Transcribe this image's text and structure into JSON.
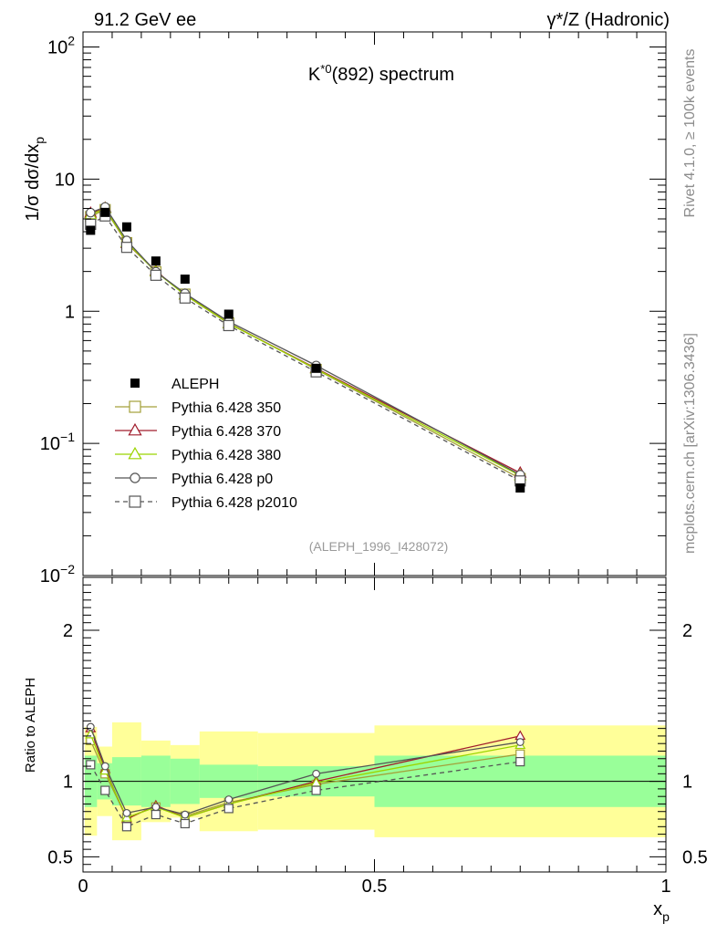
{
  "header": {
    "left": "91.2 GeV ee",
    "right": "γ*/Z (Hadronic)",
    "right_symbol": "γ",
    "right_rest": "*/Z (Hadronic)"
  },
  "side_text": {
    "rivet": "Rivet 4.1.0, ≥ 100k events",
    "mcplots": "mcplots.cern.ch [arXiv:1306.3436]"
  },
  "chart_data": {
    "type": "scatter",
    "title": "K*0(892) spectrum",
    "title_base": "K",
    "title_sup": "*0",
    "title_rest": "(892) spectrum",
    "analysis_id": "(ALEPH_1996_I428072)",
    "xlabel": "x",
    "xlabel_sub": "p",
    "ylabel": "1/σ  dσ/dx",
    "ylabel_sub": "p",
    "ratio_ylabel": "Ratio to ALEPH",
    "xlim": [
      0,
      1
    ],
    "ylim_log": [
      0.01,
      130
    ],
    "ratio_ylim": [
      0.4,
      2.35
    ],
    "x_ticks": [
      {
        "v": 0,
        "label": "0"
      },
      {
        "v": 0.5,
        "label": "0.5"
      },
      {
        "v": 1,
        "label": "1"
      }
    ],
    "y_ticks": [
      {
        "v": 100,
        "base": "10",
        "exp": "2"
      },
      {
        "v": 10,
        "label": "10"
      },
      {
        "v": 1,
        "label": "1"
      },
      {
        "v": 0.1,
        "base": "10",
        "exp": "−1"
      },
      {
        "v": 0.01,
        "base": "10",
        "exp": "−2"
      }
    ],
    "ratio_ticks": [
      {
        "v": 0.5,
        "label": "0.5"
      },
      {
        "v": 1,
        "label": "1"
      },
      {
        "v": 2,
        "label": "2"
      }
    ],
    "data_points": {
      "name": "ALEPH",
      "x": [
        0.013,
        0.038,
        0.075,
        0.125,
        0.175,
        0.25,
        0.4,
        0.75
      ],
      "y": [
        4.1,
        5.6,
        4.35,
        2.4,
        1.75,
        0.95,
        0.37,
        0.046
      ]
    },
    "ratio_bands": [
      {
        "x0": 0.003,
        "x1": 0.024,
        "inner": [
          0.83,
          1.17
        ],
        "outer": [
          0.64,
          1.36
        ]
      },
      {
        "x0": 0.024,
        "x1": 0.05,
        "inner": [
          0.88,
          1.12
        ],
        "outer": [
          0.77,
          1.23
        ]
      },
      {
        "x0": 0.05,
        "x1": 0.1,
        "inner": [
          0.84,
          1.16
        ],
        "outer": [
          0.61,
          1.39
        ]
      },
      {
        "x0": 0.1,
        "x1": 0.15,
        "inner": [
          0.83,
          1.17
        ],
        "outer": [
          0.73,
          1.27
        ]
      },
      {
        "x0": 0.15,
        "x1": 0.2,
        "inner": [
          0.85,
          1.15
        ],
        "outer": [
          0.76,
          1.24
        ]
      },
      {
        "x0": 0.2,
        "x1": 0.3,
        "inner": [
          0.89,
          1.11
        ],
        "outer": [
          0.67,
          1.33
        ]
      },
      {
        "x0": 0.3,
        "x1": 0.5,
        "inner": [
          0.9,
          1.1
        ],
        "outer": [
          0.68,
          1.32
        ]
      },
      {
        "x0": 0.5,
        "x1": 1.0,
        "inner": [
          0.83,
          1.17
        ],
        "outer": [
          0.63,
          1.37
        ]
      }
    ],
    "series": [
      {
        "name": "Pythia 6.428 350",
        "color": "#a3a03a",
        "marker": "square",
        "dash": false,
        "ratio": [
          1.27,
          1.05,
          0.76,
          0.83,
          0.77,
          0.86,
          0.98,
          1.18
        ]
      },
      {
        "name": "Pythia 6.428 370",
        "color": "#a01c2c",
        "marker": "triangle",
        "dash": false,
        "ratio": [
          1.35,
          1.08,
          0.75,
          0.84,
          0.76,
          0.85,
          1.0,
          1.3
        ]
      },
      {
        "name": "Pythia 6.428 380",
        "color": "#9bd400",
        "marker": "triangle",
        "dash": false,
        "ratio": [
          1.31,
          1.07,
          0.76,
          0.83,
          0.76,
          0.85,
          0.99,
          1.24
        ]
      },
      {
        "name": "Pythia 6.428 p0",
        "color": "#555555",
        "marker": "circle",
        "dash": false,
        "ratio": [
          1.36,
          1.1,
          0.79,
          0.83,
          0.78,
          0.88,
          1.05,
          1.26
        ]
      },
      {
        "name": "Pythia 6.428 p2010",
        "color": "#555555",
        "marker": "square",
        "dash": true,
        "ratio": [
          1.11,
          0.94,
          0.7,
          0.78,
          0.72,
          0.82,
          0.94,
          1.13
        ]
      }
    ]
  },
  "colors": {
    "band_inner": "#99ff99",
    "band_outer": "#ffff99",
    "data": "#000000"
  }
}
